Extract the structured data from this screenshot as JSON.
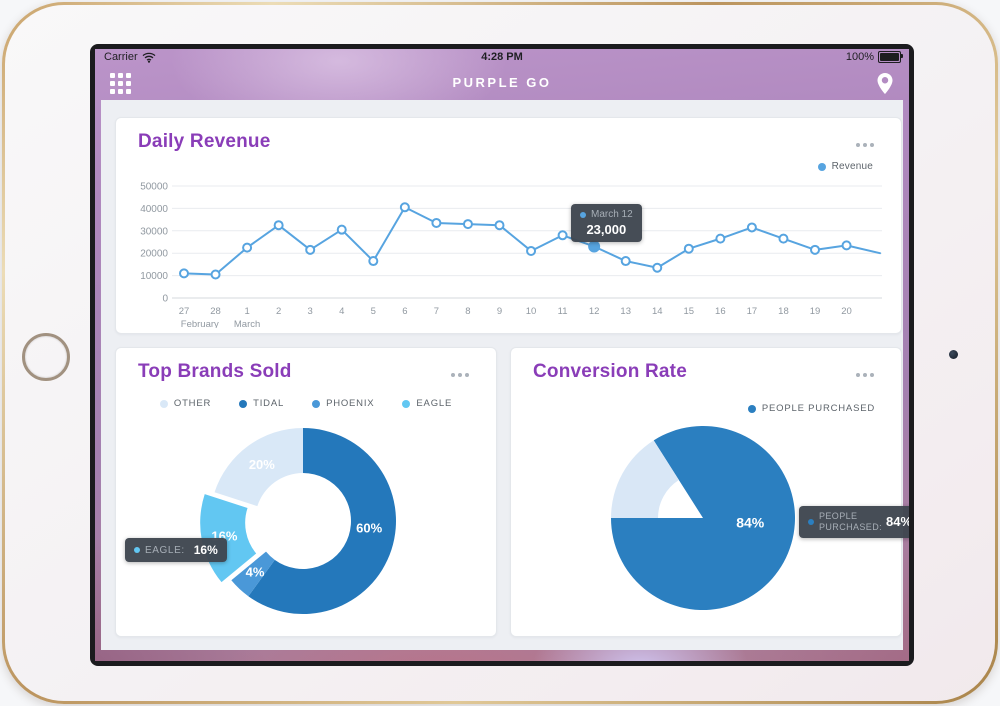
{
  "device": {
    "carrier": "Carrier",
    "time": "4:28 PM",
    "battery_label": "100%"
  },
  "app": {
    "title": "PURPLE GO",
    "accent_color": "#8a3db8"
  },
  "chart_data": [
    {
      "type": "line",
      "title": "Daily Revenue",
      "legend": [
        {
          "label": "Revenue",
          "color": "#57a4e0"
        }
      ],
      "x": [
        "27",
        "28",
        "1",
        "2",
        "3",
        "4",
        "5",
        "6",
        "7",
        "8",
        "9",
        "10",
        "11",
        "12",
        "13",
        "14",
        "15",
        "16",
        "17",
        "18",
        "19",
        "20"
      ],
      "month_annotations": [
        {
          "label": "February",
          "index": 0.5
        },
        {
          "label": "March",
          "index": 2
        }
      ],
      "values": [
        11000,
        10500,
        22500,
        32500,
        21500,
        30500,
        16500,
        40500,
        33500,
        33000,
        32500,
        21000,
        28000,
        23000,
        16500,
        13500,
        22000,
        26500,
        31500,
        26500,
        21500,
        23500
      ],
      "trailing_value": 20000,
      "ylim": [
        0,
        50000
      ],
      "yticks": [
        0,
        10000,
        20000,
        30000,
        40000,
        50000
      ],
      "line_color": "#57a4e0",
      "grid": true,
      "legend_position": "top-right",
      "active_index": 13,
      "tooltip": {
        "label": "March 12",
        "value": "23,000",
        "dot_color": "#57a4e0"
      }
    },
    {
      "type": "donut",
      "title": "Top Brands Sold",
      "legend": [
        {
          "label": "OTHER",
          "color": "#d9e8f7"
        },
        {
          "label": "TIDAL",
          "color": "#2478bb"
        },
        {
          "label": "PHOENIX",
          "color": "#4a98d8"
        },
        {
          "label": "EAGLE",
          "color": "#62c7f2"
        }
      ],
      "segments": [
        {
          "label": "TIDAL",
          "value": 60,
          "color": "#2478bb",
          "label_text": "60%"
        },
        {
          "label": "PHOENIX",
          "value": 4,
          "color": "#4a98d8",
          "label_text": "4%"
        },
        {
          "label": "EAGLE",
          "value": 16,
          "color": "#62c7f2",
          "label_text": "16%",
          "exploded": true
        },
        {
          "label": "OTHER",
          "value": 20,
          "color": "#d9e8f7",
          "label_text": "20%"
        }
      ],
      "legend_position": "top-center",
      "tooltip": {
        "label": "EAGLE:",
        "value": "16%",
        "dot_color": "#62c7f2"
      }
    },
    {
      "type": "pie",
      "title": "Conversion Rate",
      "legend": [
        {
          "label": "PEOPLE PURCHASED",
          "color": "#2b7fc0"
        }
      ],
      "start_angle": -32.4,
      "segments": [
        {
          "label": "PEOPLE PURCHASED",
          "value": 84,
          "color": "#2b7fc0",
          "label_text": "84%"
        },
        {
          "value": 16,
          "color": "#d9e7f6",
          "ring": true
        }
      ],
      "legend_position": "top-right",
      "tooltip": {
        "label": "PEOPLE PURCHASED:",
        "value": "84%",
        "dot_color": "#2b7fc0"
      }
    }
  ]
}
